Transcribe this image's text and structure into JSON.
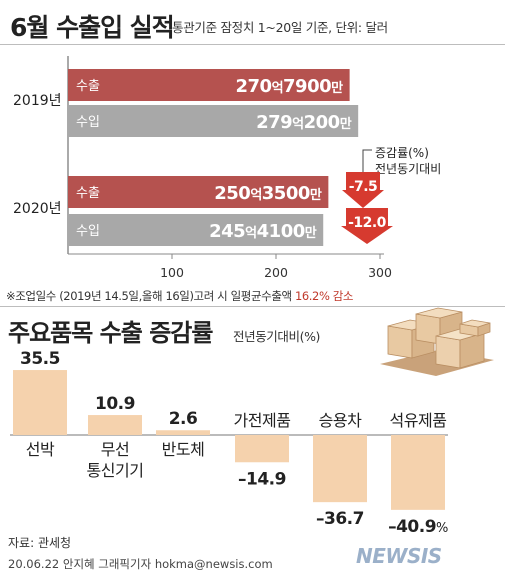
{
  "header": {
    "title": "6월 수출입 실적",
    "subtitle": "통관기준 잠정치 1~20일 기준, 단위: 달러"
  },
  "note": {
    "prefix": "※조업일수 (2019년 14.5일,올해 16일)고려 시 일평균수출액 ",
    "highlight": "16.2% 감소"
  },
  "section2": {
    "title": "주요품목 수출 증감률",
    "subtitle": "전년동기대비(%)"
  },
  "footer": {
    "source": "자료: 관세청",
    "credit": "20.06.22 안지혜 그래픽기자 hokma@newsis.com",
    "logo": "NEWSIS"
  },
  "colors": {
    "export_bar": "#b5524f",
    "import_bar": "#a8a8a8",
    "decline_arrow": "#d63a2f",
    "item_bar": "#f5d2ad"
  },
  "chart_data": [
    {
      "type": "bar",
      "orientation": "horizontal",
      "title": "6월 수출입 실적",
      "subtitle": "통관기준 잠정치 1~20일 기준, 단위: 달러",
      "xlim": [
        0,
        300
      ],
      "x_ticks": [
        "100",
        "200",
        "300"
      ],
      "groups": [
        {
          "year": "2019년",
          "bars": [
            {
              "name": "수출",
              "value": 270.79,
              "label_num1": "270",
              "label_unit1": "억",
              "label_num2": "7900",
              "label_unit2": "만"
            },
            {
              "name": "수입",
              "value": 279.02,
              "label_num1": "279",
              "label_unit1": "억",
              "label_num2": "200",
              "label_unit2": "만"
            }
          ]
        },
        {
          "year": "2020년",
          "bars": [
            {
              "name": "수출",
              "value": 250.35,
              "label_num1": "250",
              "label_unit1": "억",
              "label_num2": "3500",
              "label_unit2": "만"
            },
            {
              "name": "수입",
              "value": 245.41,
              "label_num1": "245",
              "label_unit1": "억",
              "label_num2": "4100",
              "label_unit2": "만"
            }
          ]
        }
      ],
      "change_header_1": "증감률(%)",
      "change_header_2": "전년동기대비",
      "changes": [
        {
          "series": "수출",
          "value": -7.5,
          "label": "-7.5"
        },
        {
          "series": "수입",
          "value": -12.0,
          "label": "-12.0"
        }
      ]
    },
    {
      "type": "bar",
      "orientation": "vertical",
      "title": "주요품목 수출 증감률",
      "ylabel": "전년동기대비(%)",
      "ylim": [
        -40.9,
        35.5
      ],
      "categories": [
        "선박",
        "무선\n통신기기",
        "반도체",
        "가전제품",
        "승용차",
        "석유제품"
      ],
      "values": [
        35.5,
        10.9,
        2.6,
        -14.9,
        -36.7,
        -40.9
      ],
      "value_labels": [
        "35.5",
        "10.9",
        "2.6",
        "–14.9",
        "–36.7",
        "–40.9"
      ],
      "last_label_unit": "%"
    }
  ]
}
